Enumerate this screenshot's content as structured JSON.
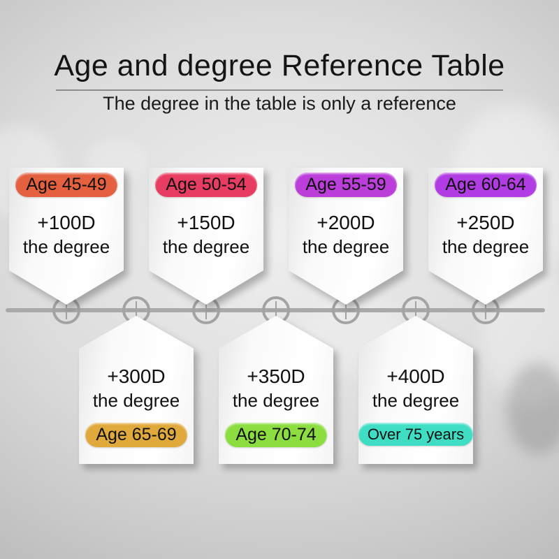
{
  "header": {
    "title": "Age and degree Reference Table",
    "subtitle": "The degree in the table is only a reference"
  },
  "timeline": {
    "node_count": 7,
    "node_icon": "plus-icon",
    "line_color": "#a9a9a9"
  },
  "cards": [
    {
      "age_label": "Age 45-49",
      "degree": "+100D",
      "caption": "the degree",
      "pill_color": "#e4603f",
      "row": "top"
    },
    {
      "age_label": "Age 50-54",
      "degree": "+150D",
      "caption": "the degree",
      "pill_color": "#e73d62",
      "row": "top"
    },
    {
      "age_label": "Age 55-59",
      "degree": "+200D",
      "caption": "the degree",
      "pill_color": "#bb3eda",
      "row": "top"
    },
    {
      "age_label": "Age 60-64",
      "degree": "+250D",
      "caption": "the degree",
      "pill_color": "#b13ce4",
      "row": "top"
    },
    {
      "age_label": "Age 65-69",
      "degree": "+300D",
      "caption": "the degree",
      "pill_color": "#e0a93c",
      "row": "bottom"
    },
    {
      "age_label": "Age 70-74",
      "degree": "+350D",
      "caption": "the degree",
      "pill_color": "#8cdd40",
      "row": "bottom"
    },
    {
      "age_label": "Over 75 years",
      "degree": "+400D",
      "caption": "the degree",
      "pill_color": "#3eddc4",
      "row": "bottom"
    }
  ]
}
